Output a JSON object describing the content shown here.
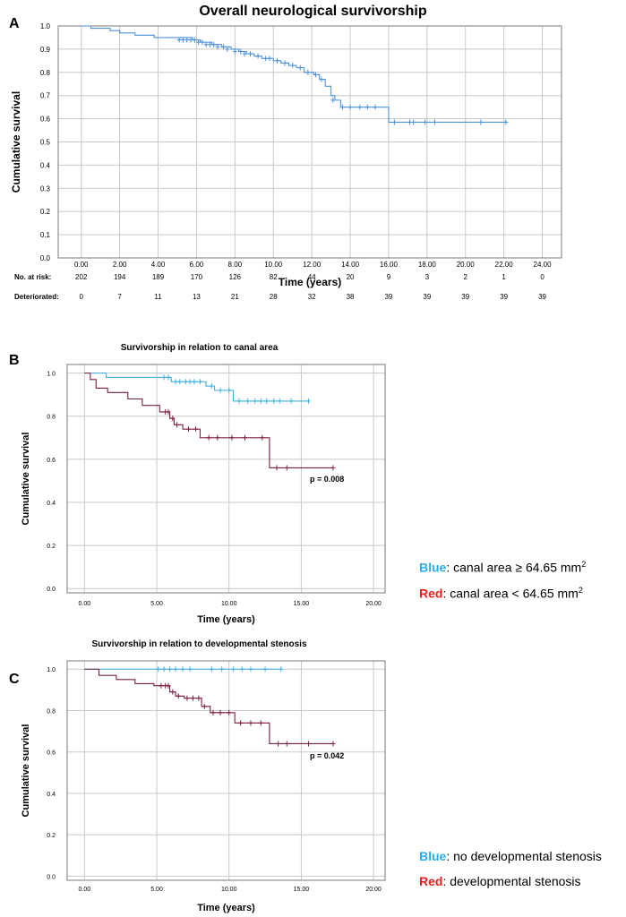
{
  "chart_data": [
    {
      "id": "A",
      "panel_letter": "A",
      "type": "line",
      "title": "Overall neurological survivorship",
      "xlabel": "Time (years)",
      "ylabel": "Cumulative survival",
      "xlim": [
        -1.2,
        25
      ],
      "ylim": [
        0,
        1.0
      ],
      "x_ticks": [
        "0.00",
        "2.00",
        "4.00",
        "6.00",
        "8.00",
        "10.00",
        "12.00",
        "14.00",
        "16.00",
        "18.00",
        "20.00",
        "22.00",
        "24.00"
      ],
      "y_ticks": [
        "0.0",
        "0.1",
        "0.2",
        "0.3",
        "0.4",
        "0.5",
        "0.6",
        "0.7",
        "0.8",
        "0.9",
        "1.0"
      ],
      "grid": true,
      "series": [
        {
          "color": "#4a90d9",
          "steps": [
            [
              0,
              1.0
            ],
            [
              0.5,
              0.99
            ],
            [
              1.5,
              0.98
            ],
            [
              2.0,
              0.97
            ],
            [
              2.8,
              0.96
            ],
            [
              3.8,
              0.95
            ],
            [
              5.8,
              0.94
            ],
            [
              6.2,
              0.93
            ],
            [
              6.8,
              0.92
            ],
            [
              7.3,
              0.91
            ],
            [
              7.8,
              0.9
            ],
            [
              8.2,
              0.89
            ],
            [
              8.6,
              0.88
            ],
            [
              9.0,
              0.87
            ],
            [
              9.4,
              0.86
            ],
            [
              10.0,
              0.85
            ],
            [
              10.4,
              0.84
            ],
            [
              10.8,
              0.83
            ],
            [
              11.2,
              0.82
            ],
            [
              11.6,
              0.8
            ],
            [
              12.1,
              0.79
            ],
            [
              12.4,
              0.77
            ],
            [
              12.7,
              0.74
            ],
            [
              13.0,
              0.7
            ],
            [
              13.2,
              0.68
            ],
            [
              13.5,
              0.65
            ],
            [
              16.0,
              0.585
            ],
            [
              22.2,
              0.585
            ]
          ],
          "censored": [
            [
              5.1,
              0.94
            ],
            [
              5.3,
              0.94
            ],
            [
              5.5,
              0.94
            ],
            [
              5.7,
              0.94
            ],
            [
              5.9,
              0.94
            ],
            [
              6.1,
              0.93
            ],
            [
              6.3,
              0.93
            ],
            [
              6.5,
              0.92
            ],
            [
              6.7,
              0.92
            ],
            [
              6.9,
              0.92
            ],
            [
              7.1,
              0.91
            ],
            [
              7.4,
              0.91
            ],
            [
              7.6,
              0.9
            ],
            [
              8.0,
              0.89
            ],
            [
              8.3,
              0.89
            ],
            [
              8.5,
              0.88
            ],
            [
              8.8,
              0.88
            ],
            [
              9.2,
              0.87
            ],
            [
              9.6,
              0.86
            ],
            [
              9.8,
              0.86
            ],
            [
              10.2,
              0.85
            ],
            [
              10.6,
              0.84
            ],
            [
              11.0,
              0.83
            ],
            [
              11.4,
              0.82
            ],
            [
              11.8,
              0.8
            ],
            [
              12.2,
              0.79
            ],
            [
              12.5,
              0.77
            ],
            [
              13.1,
              0.68
            ],
            [
              13.6,
              0.65
            ],
            [
              14.0,
              0.65
            ],
            [
              14.5,
              0.65
            ],
            [
              14.9,
              0.65
            ],
            [
              15.3,
              0.65
            ],
            [
              16.3,
              0.585
            ],
            [
              17.1,
              0.585
            ],
            [
              17.3,
              0.585
            ],
            [
              17.9,
              0.585
            ],
            [
              18.4,
              0.585
            ],
            [
              20.8,
              0.585
            ],
            [
              22.1,
              0.585
            ]
          ]
        }
      ],
      "risk_table": {
        "at_risk_label": "No. at risk:",
        "deteriorated_label": "Deteriorated:",
        "at_risk": [
          "202",
          "194",
          "189",
          "170",
          "126",
          "82",
          "44",
          "20",
          "9",
          "3",
          "2",
          "1",
          "0"
        ],
        "deteriorated": [
          "0",
          "7",
          "11",
          "13",
          "21",
          "28",
          "32",
          "38",
          "39",
          "39",
          "39",
          "39",
          "39"
        ]
      }
    },
    {
      "id": "B",
      "panel_letter": "B",
      "type": "line",
      "title": "Survivorship in relation to canal area",
      "xlabel": "Time (years)",
      "ylabel": "Cumulative survival",
      "xlim": [
        -1.2,
        20.8
      ],
      "ylim": [
        -0.02,
        1.04
      ],
      "x_ticks": [
        "0.00",
        "5.00",
        "10.00",
        "15.00",
        "20.00"
      ],
      "y_ticks": [
        "0.0",
        "0.2",
        "0.4",
        "0.6",
        "0.8",
        "1.0"
      ],
      "grid": true,
      "annotation": "p = 0.008",
      "series": [
        {
          "color": "#40b0e0",
          "steps": [
            [
              0,
              1.0
            ],
            [
              1.5,
              0.98
            ],
            [
              6.0,
              0.96
            ],
            [
              8.4,
              0.94
            ],
            [
              9.0,
              0.92
            ],
            [
              10.3,
              0.87
            ],
            [
              15.5,
              0.87
            ]
          ],
          "censored": [
            [
              5.5,
              0.98
            ],
            [
              5.8,
              0.98
            ],
            [
              6.3,
              0.96
            ],
            [
              6.6,
              0.96
            ],
            [
              7.0,
              0.96
            ],
            [
              7.3,
              0.96
            ],
            [
              7.6,
              0.96
            ],
            [
              8.0,
              0.96
            ],
            [
              8.8,
              0.94
            ],
            [
              9.4,
              0.92
            ],
            [
              10.0,
              0.92
            ],
            [
              10.7,
              0.87
            ],
            [
              11.3,
              0.87
            ],
            [
              11.8,
              0.87
            ],
            [
              12.2,
              0.87
            ],
            [
              12.6,
              0.87
            ],
            [
              13.1,
              0.87
            ],
            [
              13.5,
              0.87
            ],
            [
              14.3,
              0.87
            ],
            [
              15.5,
              0.87
            ]
          ]
        },
        {
          "color": "#7a1f3d",
          "steps": [
            [
              0,
              1.0
            ],
            [
              0.4,
              0.97
            ],
            [
              0.8,
              0.93
            ],
            [
              1.6,
              0.91
            ],
            [
              3.0,
              0.88
            ],
            [
              4.0,
              0.85
            ],
            [
              5.2,
              0.82
            ],
            [
              5.9,
              0.79
            ],
            [
              6.2,
              0.76
            ],
            [
              6.8,
              0.74
            ],
            [
              8.0,
              0.7
            ],
            [
              12.8,
              0.56
            ],
            [
              17.2,
              0.56
            ]
          ],
          "censored": [
            [
              5.6,
              0.82
            ],
            [
              5.8,
              0.82
            ],
            [
              6.1,
              0.79
            ],
            [
              6.4,
              0.76
            ],
            [
              7.2,
              0.74
            ],
            [
              7.7,
              0.74
            ],
            [
              8.6,
              0.7
            ],
            [
              9.2,
              0.7
            ],
            [
              10.2,
              0.7
            ],
            [
              11.1,
              0.7
            ],
            [
              12.3,
              0.7
            ],
            [
              13.3,
              0.56
            ],
            [
              14.0,
              0.56
            ],
            [
              17.2,
              0.56
            ]
          ]
        }
      ],
      "legend": {
        "blue_key": "Blue",
        "blue_text": ": canal area ≥ 64.65 mm",
        "red_key": "Red",
        "red_text": ": canal area < 64.65 mm",
        "superscript": "2"
      }
    },
    {
      "id": "C",
      "panel_letter": "C",
      "type": "line",
      "title": "Survivorship in relation to developmental stenosis",
      "xlabel": "Time (years)",
      "ylabel": "Cumulative survival",
      "xlim": [
        -1.2,
        20.8
      ],
      "ylim": [
        -0.02,
        1.04
      ],
      "x_ticks": [
        "0.00",
        "5.00",
        "10.00",
        "15.00",
        "20.00"
      ],
      "y_ticks": [
        "0.0",
        "0.2",
        "0.4",
        "0.6",
        "0.8",
        "1.0"
      ],
      "grid": true,
      "annotation": "p = 0.042",
      "series": [
        {
          "color": "#40b0e0",
          "steps": [
            [
              0,
              1.0
            ],
            [
              13.6,
              1.0
            ]
          ],
          "censored": [
            [
              5.1,
              1.0
            ],
            [
              5.5,
              1.0
            ],
            [
              5.9,
              1.0
            ],
            [
              6.3,
              1.0
            ],
            [
              6.8,
              1.0
            ],
            [
              7.3,
              1.0
            ],
            [
              8.8,
              1.0
            ],
            [
              9.5,
              1.0
            ],
            [
              10.3,
              1.0
            ],
            [
              10.9,
              1.0
            ],
            [
              11.5,
              1.0
            ],
            [
              12.5,
              1.0
            ],
            [
              13.6,
              1.0
            ]
          ]
        },
        {
          "color": "#7a1f3d",
          "steps": [
            [
              0,
              1.0
            ],
            [
              1.0,
              0.97
            ],
            [
              2.2,
              0.95
            ],
            [
              3.5,
              0.93
            ],
            [
              4.8,
              0.92
            ],
            [
              5.9,
              0.89
            ],
            [
              6.3,
              0.87
            ],
            [
              6.9,
              0.86
            ],
            [
              8.1,
              0.82
            ],
            [
              8.7,
              0.79
            ],
            [
              10.4,
              0.74
            ],
            [
              12.8,
              0.64
            ],
            [
              17.2,
              0.64
            ]
          ],
          "censored": [
            [
              5.3,
              0.92
            ],
            [
              5.6,
              0.92
            ],
            [
              5.8,
              0.92
            ],
            [
              6.1,
              0.89
            ],
            [
              6.5,
              0.87
            ],
            [
              7.1,
              0.86
            ],
            [
              7.5,
              0.86
            ],
            [
              7.9,
              0.86
            ],
            [
              8.3,
              0.82
            ],
            [
              8.9,
              0.79
            ],
            [
              9.4,
              0.79
            ],
            [
              10.0,
              0.79
            ],
            [
              10.8,
              0.74
            ],
            [
              11.5,
              0.74
            ],
            [
              12.2,
              0.74
            ],
            [
              13.4,
              0.64
            ],
            [
              14.0,
              0.64
            ],
            [
              15.5,
              0.64
            ],
            [
              17.2,
              0.64
            ]
          ]
        }
      ],
      "legend": {
        "blue_key": "Blue",
        "blue_text": ": no developmental stenosis",
        "red_key": "Red",
        "red_text": ": developmental stenosis"
      }
    }
  ]
}
